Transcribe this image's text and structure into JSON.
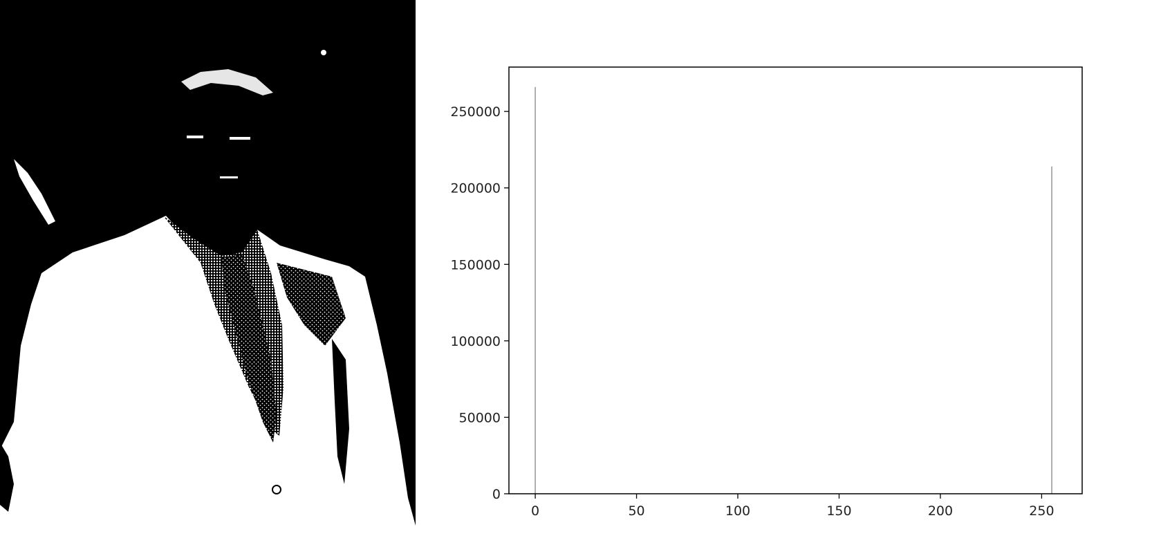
{
  "image_panel": {
    "kind": "binary-thresholded-photo"
  },
  "chart_data": {
    "type": "bar",
    "xlabel": "",
    "ylabel": "",
    "xlim": [
      -13,
      270
    ],
    "ylim": [
      0,
      279000
    ],
    "xticks": [
      0,
      50,
      100,
      150,
      200,
      250
    ],
    "yticks": [
      0,
      50000,
      100000,
      150000,
      200000,
      250000
    ],
    "x": [
      0,
      255
    ],
    "values": [
      266000,
      214000
    ],
    "grid": false,
    "legend": "none",
    "bar_color": "#9a9a9a",
    "axis_color": "#000000"
  }
}
